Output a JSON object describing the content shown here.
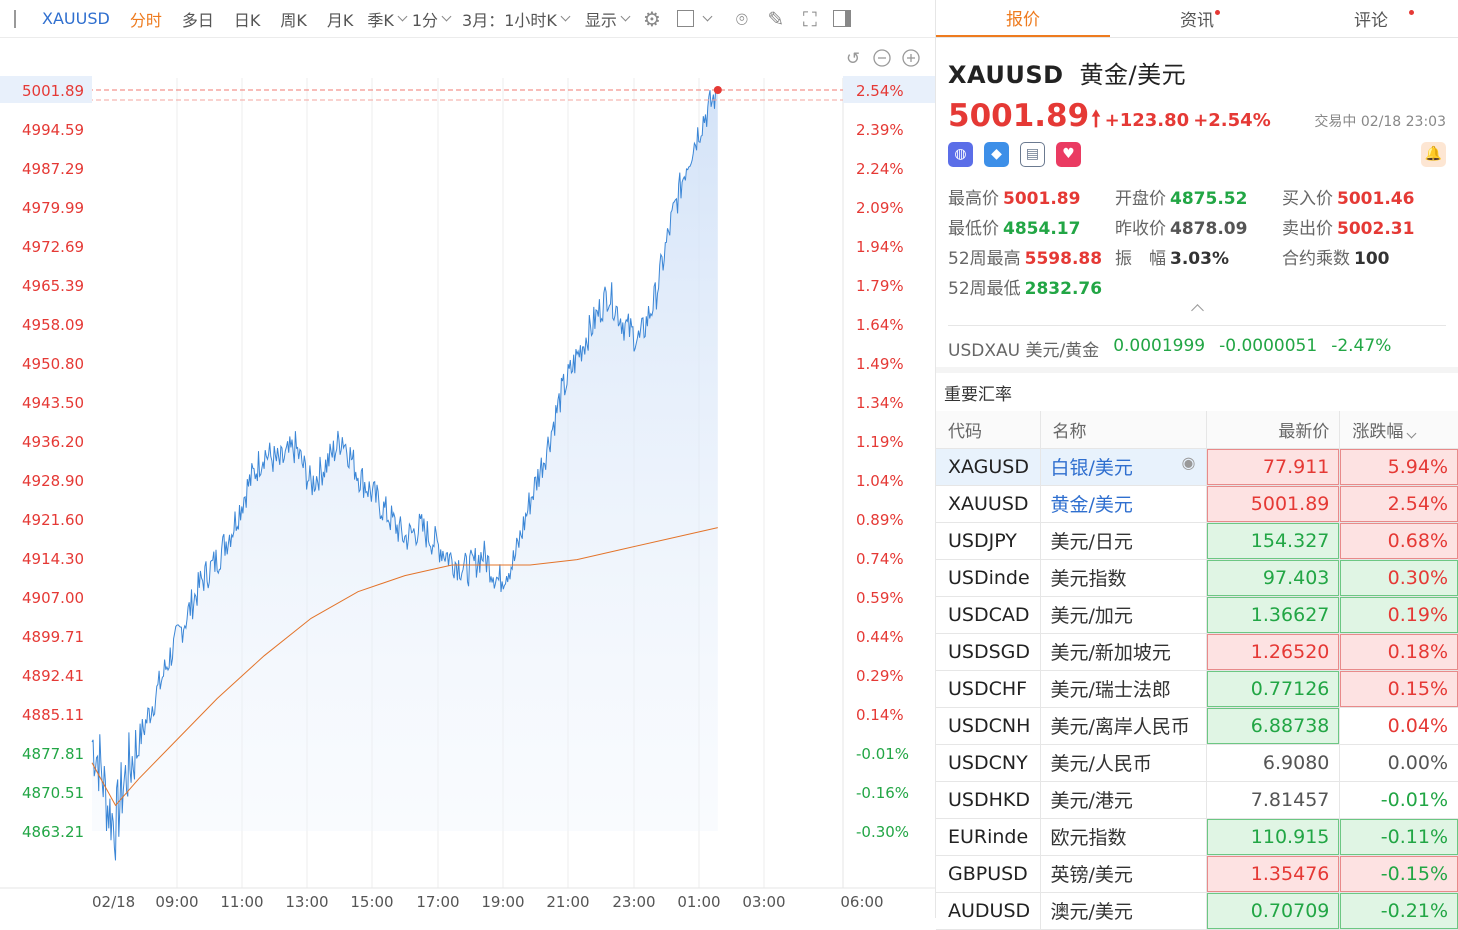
{
  "toolbar": {
    "symbol": "XAUUSD",
    "tabs": [
      "分时",
      "多日",
      "日K",
      "周K",
      "月K"
    ],
    "season": "季K",
    "interval": "1分",
    "range": "3月：1小时K",
    "display": "显示"
  },
  "chart": {
    "price_labels": [
      "5001.89",
      "4994.59",
      "4987.29",
      "4979.99",
      "4972.69",
      "4965.39",
      "4958.09",
      "4950.80",
      "4943.50",
      "4936.20",
      "4928.90",
      "4921.60",
      "4914.30",
      "4907.00",
      "4899.71",
      "4892.41",
      "4885.11",
      "4877.81",
      "4870.51",
      "4863.21"
    ],
    "pct_labels": [
      "2.54%",
      "2.39%",
      "2.24%",
      "2.09%",
      "1.94%",
      "1.79%",
      "1.64%",
      "1.49%",
      "1.34%",
      "1.19%",
      "1.04%",
      "0.89%",
      "0.74%",
      "0.59%",
      "0.44%",
      "0.29%",
      "0.14%",
      "-0.01%",
      "-0.16%",
      "-0.30%"
    ],
    "time_labels": [
      "02/18",
      "09:00",
      "11:00",
      "13:00",
      "15:00",
      "17:00",
      "19:00",
      "21:00",
      "23:00",
      "01:00",
      "03:00",
      "06:00"
    ],
    "current_price": "5001.89",
    "current_pct": "2.54%"
  },
  "chart_data": {
    "type": "area",
    "y_range": [
      4863.21,
      5001.89
    ],
    "pct_range": [
      -0.3,
      2.54
    ],
    "x_labels": [
      "02/18",
      "09:00",
      "11:00",
      "13:00",
      "15:00",
      "17:00",
      "19:00",
      "21:00",
      "23:00",
      "01:00",
      "03:00",
      "06:00"
    ],
    "price_series": [
      [
        0,
        4880
      ],
      [
        0.5,
        4876
      ],
      [
        1,
        4868
      ],
      [
        1.5,
        4864
      ],
      [
        2,
        4872
      ],
      [
        3,
        4880
      ],
      [
        4,
        4888
      ],
      [
        5,
        4896
      ],
      [
        6,
        4903
      ],
      [
        7,
        4910
      ],
      [
        8,
        4914
      ],
      [
        9,
        4920
      ],
      [
        10,
        4928
      ],
      [
        11,
        4934
      ],
      [
        12,
        4932
      ],
      [
        13,
        4935
      ],
      [
        14,
        4928
      ],
      [
        15,
        4932
      ],
      [
        16,
        4937
      ],
      [
        17,
        4930
      ],
      [
        18,
        4926
      ],
      [
        19,
        4922
      ],
      [
        20,
        4918
      ],
      [
        21,
        4920
      ],
      [
        22,
        4917
      ],
      [
        23,
        4914
      ],
      [
        24,
        4912
      ],
      [
        25,
        4915
      ],
      [
        26,
        4910
      ],
      [
        27,
        4914
      ],
      [
        28,
        4925
      ],
      [
        29,
        4934
      ],
      [
        30,
        4945
      ],
      [
        31,
        4952
      ],
      [
        32,
        4958
      ],
      [
        33,
        4964
      ],
      [
        34,
        4958
      ],
      [
        35,
        4955
      ],
      [
        36,
        4963
      ],
      [
        37,
        4977
      ],
      [
        38,
        4988
      ],
      [
        39,
        4996
      ],
      [
        40,
        5001.89
      ]
    ],
    "avg_series": [
      [
        0,
        4876
      ],
      [
        1.5,
        4868
      ],
      [
        3,
        4873
      ],
      [
        5,
        4879
      ],
      [
        8,
        4888
      ],
      [
        11,
        4896
      ],
      [
        14,
        4903
      ],
      [
        17,
        4908
      ],
      [
        20,
        4911
      ],
      [
        23,
        4913
      ],
      [
        25,
        4913
      ],
      [
        28,
        4913
      ],
      [
        31,
        4914
      ],
      [
        34,
        4916
      ],
      [
        37,
        4918
      ],
      [
        40,
        4920
      ]
    ],
    "x_span": 48
  },
  "side": {
    "tabs": [
      "报价",
      "资讯",
      "评论"
    ],
    "name": "XAUUSD",
    "cn": "黄金/美元",
    "price": "5001.89",
    "change": "+123.80",
    "pct": "+2.54%",
    "status": "交易中 02/18 23:03",
    "stats": [
      {
        "l": "最高价",
        "v": "5001.89",
        "c": "red"
      },
      {
        "l": "开盘价",
        "v": "4875.52",
        "c": "green"
      },
      {
        "l": "买入价",
        "v": "5001.46",
        "c": "red"
      },
      {
        "l": "最低价",
        "v": "4854.17",
        "c": "green"
      },
      {
        "l": "昨收价",
        "v": "4878.09",
        "c": "gray"
      },
      {
        "l": "卖出价",
        "v": "5002.31",
        "c": "red"
      },
      {
        "l": "52周最高",
        "v": "5598.88",
        "c": "red"
      },
      {
        "l": "振　幅",
        "v": "3.03%",
        "c": "dark"
      },
      {
        "l": "合约乘数",
        "v": "100",
        "c": "dark"
      },
      {
        "l": "52周最低",
        "v": "2832.76",
        "c": "green"
      }
    ],
    "inverse": {
      "label": "USDXAU 美元/黄金",
      "price": "0.0001999",
      "change": "-0.0000051",
      "pct": "-2.47%"
    },
    "section": "重要汇率",
    "headers": [
      "代码",
      "名称",
      "最新价",
      "涨跌幅"
    ],
    "rows": [
      {
        "code": "XAGUSD",
        "name": "白银/美元",
        "price": "77.911",
        "pct": "5.94%",
        "pd": "up",
        "cd": "up",
        "sel": true
      },
      {
        "code": "XAUUSD",
        "name": "黄金/美元",
        "price": "5001.89",
        "pct": "2.54%",
        "pd": "up",
        "cd": "up",
        "link": true
      },
      {
        "code": "USDJPY",
        "name": "美元/日元",
        "price": "154.327",
        "pct": "0.68%",
        "pd": "dn",
        "cd": "up"
      },
      {
        "code": "USDinde",
        "name": "美元指数",
        "price": "97.403",
        "pct": "0.30%",
        "pd": "dn",
        "cd": "dn"
      },
      {
        "code": "USDCAD",
        "name": "美元/加元",
        "price": "1.36627",
        "pct": "0.19%",
        "pd": "dn",
        "cd": "dn"
      },
      {
        "code": "USDSGD",
        "name": "美元/新加坡元",
        "price": "1.26520",
        "pct": "0.18%",
        "pd": "up",
        "cd": "up"
      },
      {
        "code": "USDCHF",
        "name": "美元/瑞士法郎",
        "price": "0.77126",
        "pct": "0.15%",
        "pd": "dn",
        "cd": "up"
      },
      {
        "code": "USDCNH",
        "name": "美元/离岸人民币",
        "price": "6.88738",
        "pct": "0.04%",
        "pd": "dn",
        "cd": "none"
      },
      {
        "code": "USDCNY",
        "name": "美元/人民币",
        "price": "6.9080",
        "pct": "0.00%",
        "pd": "none",
        "cd": "none"
      },
      {
        "code": "USDHKD",
        "name": "美元/港元",
        "price": "7.81457",
        "pct": "-0.01%",
        "pd": "none",
        "cd": "none"
      },
      {
        "code": "EURinde",
        "name": "欧元指数",
        "price": "110.915",
        "pct": "-0.11%",
        "pd": "dn",
        "cd": "dn"
      },
      {
        "code": "GBPUSD",
        "name": "英镑/美元",
        "price": "1.35476",
        "pct": "-0.15%",
        "pd": "up",
        "cd": "up"
      },
      {
        "code": "AUDUSD",
        "name": "澳元/美元",
        "price": "0.70709",
        "pct": "-0.21%",
        "pd": "dn",
        "cd": "dn"
      }
    ]
  },
  "colors": {
    "up": "#e53935",
    "down": "#22a645",
    "accent": "#ee7b1f",
    "line": "#3b86d6"
  }
}
